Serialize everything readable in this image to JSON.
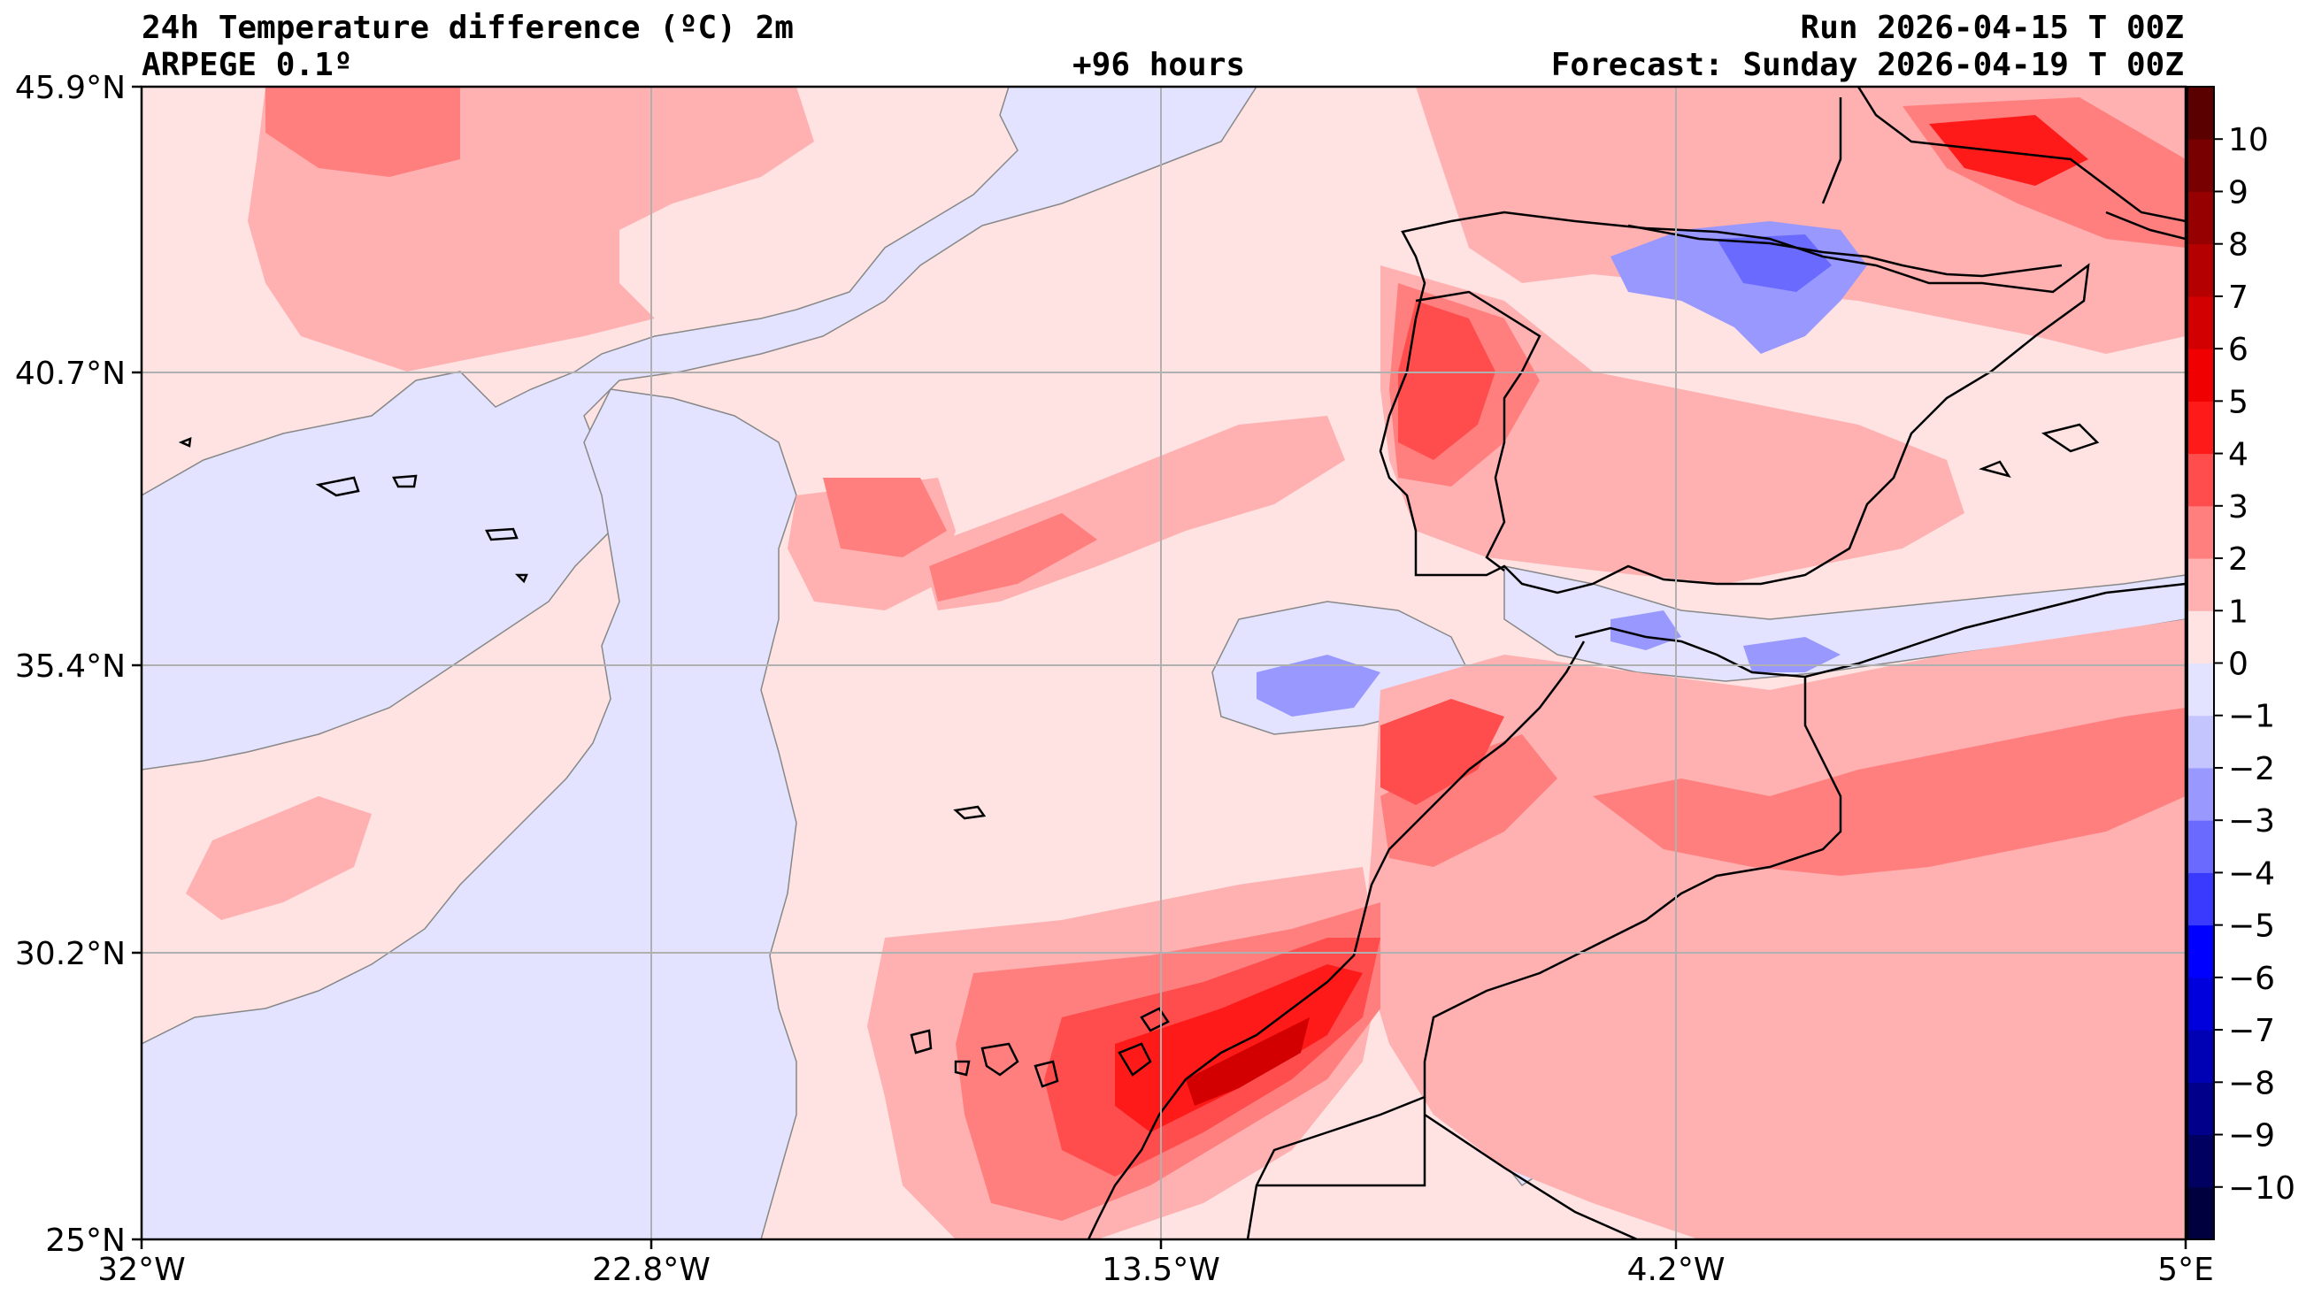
{
  "header": {
    "title": "24h Temperature difference (ºC) 2m",
    "model": "ARPEGE 0.1º",
    "lead_time": "+96 hours",
    "run": "Run 2026-04-15 T 00Z",
    "forecast": "Forecast: Sunday 2026-04-19 T 00Z"
  },
  "axes": {
    "x_ticks": [
      "32°W",
      "22.8°W",
      "13.5°W",
      "4.2°W",
      "5°E"
    ],
    "y_ticks": [
      "45.9°N",
      "40.7°N",
      "35.4°N",
      "30.2°N",
      "25°N"
    ],
    "lon_range": [
      -32,
      5
    ],
    "lat_range": [
      25,
      45.9
    ],
    "grid": true
  },
  "colorbar": {
    "levels": [
      -11,
      -10,
      -9,
      -8,
      -7,
      -6,
      -5,
      -4,
      -3,
      -2,
      -1,
      0,
      1,
      2,
      3,
      4,
      5,
      6,
      7,
      8,
      9,
      10,
      11
    ],
    "labels": [
      "−10",
      "−9",
      "−8",
      "−7",
      "−6",
      "−5",
      "−4",
      "−3",
      "−2",
      "−1",
      "0",
      "1",
      "2",
      "3",
      "4",
      "5",
      "6",
      "7",
      "8",
      "9",
      "10"
    ],
    "colors": [
      "#00003e",
      "#000060",
      "#00008a",
      "#0000b4",
      "#0000dc",
      "#0000ff",
      "#3a3aff",
      "#6a6aff",
      "#9898ff",
      "#c4c4ff",
      "#e3e3ff",
      "#ffe3e3",
      "#ffb0b0",
      "#ff7f7f",
      "#ff4c4c",
      "#ff1a1a",
      "#f00000",
      "#d20000",
      "#b40000",
      "#960000",
      "#780000",
      "#5a0000"
    ]
  },
  "colors": {
    "background_positive": "#ffe3e3",
    "background_negative": "#e3e3ff",
    "grid": "#b0b0b0",
    "coastline": "#000000"
  }
}
